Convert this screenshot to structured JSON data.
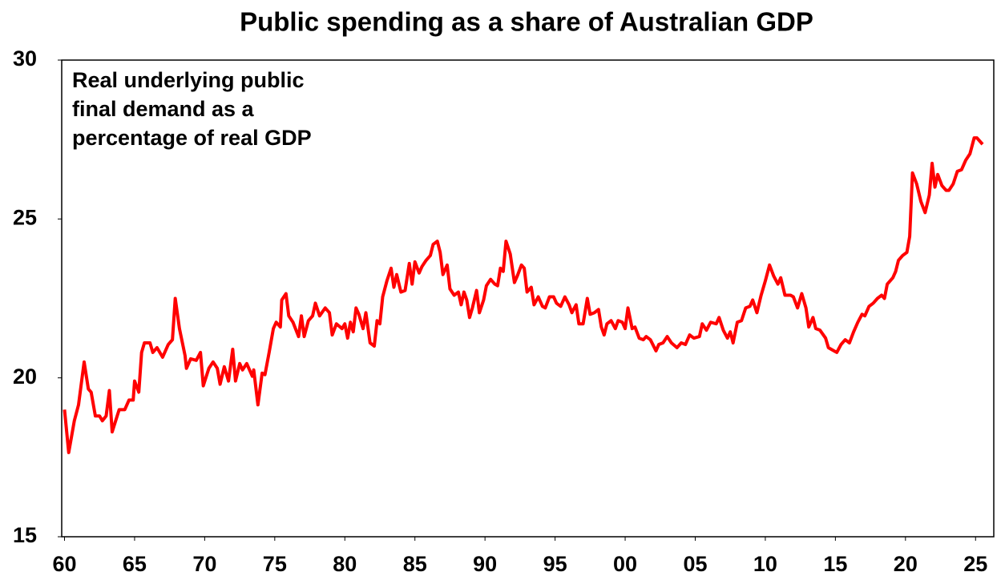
{
  "chart_data": {
    "type": "line",
    "title": "Public spending as a share of Australian GDP",
    "annotation": [
      "Real underlying public",
      "final demand as a",
      "percentage of real GDP"
    ],
    "color": "#ff0000",
    "xlim": [
      1959.8,
      2026.3
    ],
    "xticks": [
      {
        "value": 1960,
        "label": "60"
      },
      {
        "value": 1965,
        "label": "65"
      },
      {
        "value": 1970,
        "label": "70"
      },
      {
        "value": 1975,
        "label": "75"
      },
      {
        "value": 1980,
        "label": "80"
      },
      {
        "value": 1985,
        "label": "85"
      },
      {
        "value": 1990,
        "label": "90"
      },
      {
        "value": 1995,
        "label": "95"
      },
      {
        "value": 2000,
        "label": "00"
      },
      {
        "value": 2005,
        "label": "05"
      },
      {
        "value": 2010,
        "label": "10"
      },
      {
        "value": 2015,
        "label": "15"
      },
      {
        "value": 2020,
        "label": "20"
      },
      {
        "value": 2025,
        "label": "25"
      }
    ],
    "ylim": [
      15,
      30
    ],
    "yticks": [
      15,
      20,
      25,
      30
    ],
    "grid": false,
    "x": [
      1960.0,
      1960.3,
      1960.7,
      1961.0,
      1961.4,
      1961.7,
      1961.9,
      1962.2,
      1962.5,
      1962.7,
      1962.97,
      1963.2,
      1963.4,
      1963.9,
      1964.3,
      1964.6,
      1964.9,
      1965.0,
      1965.3,
      1965.5,
      1965.7,
      1966.1,
      1966.3,
      1966.6,
      1967.0,
      1967.4,
      1967.7,
      1967.9,
      1968.2,
      1968.6,
      1968.7,
      1969.0,
      1969.4,
      1969.7,
      1969.9,
      1970.3,
      1970.6,
      1970.9,
      1971.1,
      1971.4,
      1971.7,
      1972.0,
      1972.2,
      1972.5,
      1972.7,
      1973.0,
      1973.4,
      1973.5,
      1973.8,
      1974.1,
      1974.3,
      1974.6,
      1974.9,
      1975.1,
      1975.4,
      1975.5,
      1975.8,
      1976.0,
      1976.3,
      1976.7,
      1976.9,
      1977.1,
      1977.4,
      1977.7,
      1977.9,
      1978.2,
      1978.6,
      1978.9,
      1979.1,
      1979.4,
      1979.8,
      1980.0,
      1980.2,
      1980.4,
      1980.6,
      1980.8,
      1981.0,
      1981.3,
      1981.5,
      1981.8,
      1982.1,
      1982.3,
      1982.5,
      1982.7,
      1983.0,
      1983.3,
      1983.5,
      1983.7,
      1984.0,
      1984.3,
      1984.6,
      1984.8,
      1985.0,
      1985.3,
      1985.5,
      1985.8,
      1986.1,
      1986.3,
      1986.6,
      1986.8,
      1987.0,
      1987.3,
      1987.5,
      1987.8,
      1988.1,
      1988.3,
      1988.5,
      1988.7,
      1988.9,
      1989.1,
      1989.4,
      1989.6,
      1989.9,
      1990.1,
      1990.4,
      1990.7,
      1990.9,
      1991.1,
      1991.3,
      1991.5,
      1991.8,
      1992.1,
      1992.3,
      1992.6,
      1992.8,
      1993.0,
      1993.3,
      1993.5,
      1993.8,
      1994.1,
      1994.3,
      1994.6,
      1994.9,
      1995.1,
      1995.4,
      1995.7,
      1996.0,
      1996.2,
      1996.5,
      1996.7,
      1997.0,
      1997.3,
      1997.5,
      1997.8,
      1998.1,
      1998.3,
      1998.5,
      1998.7,
      1999.0,
      1999.3,
      1999.5,
      1999.8,
      2000.0,
      2000.2,
      2000.5,
      2000.7,
      2001.0,
      2001.3,
      2001.5,
      2001.8,
      2002.2,
      2002.4,
      2002.7,
      2003.0,
      2003.3,
      2003.7,
      2004.0,
      2004.3,
      2004.6,
      2004.9,
      2005.3,
      2005.5,
      2005.8,
      2006.1,
      2006.5,
      2006.7,
      2007.0,
      2007.3,
      2007.5,
      2007.7,
      2008.0,
      2008.3,
      2008.6,
      2008.9,
      2009.1,
      2009.4,
      2009.7,
      2010.0,
      2010.3,
      2010.6,
      2010.9,
      2011.1,
      2011.4,
      2011.8,
      2012.0,
      2012.3,
      2012.6,
      2012.9,
      2013.1,
      2013.4,
      2013.6,
      2013.9,
      2014.3,
      2014.5,
      2014.9,
      2015.1,
      2015.4,
      2015.7,
      2016.0,
      2016.3,
      2016.6,
      2016.9,
      2017.1,
      2017.4,
      2017.7,
      2018.0,
      2018.3,
      2018.5,
      2018.7,
      2019.1,
      2019.3,
      2019.5,
      2019.8,
      2020.1,
      2020.3,
      2020.5,
      2020.8,
      2021.1,
      2021.4,
      2021.7,
      2021.9,
      2022.1,
      2022.3,
      2022.6,
      2022.9,
      2023.1,
      2023.4,
      2023.7,
      2024.0,
      2024.3,
      2024.6,
      2024.9,
      2025.1,
      2025.5
    ],
    "values": [
      19.0,
      17.65,
      18.65,
      19.15,
      20.5,
      19.65,
      19.55,
      18.8,
      18.8,
      18.65,
      18.8,
      19.6,
      18.3,
      19.0,
      19.0,
      19.3,
      19.3,
      19.9,
      19.55,
      20.8,
      21.1,
      21.1,
      20.8,
      20.95,
      20.65,
      21.05,
      21.2,
      22.5,
      21.55,
      20.7,
      20.3,
      20.6,
      20.55,
      20.8,
      19.75,
      20.3,
      20.5,
      20.3,
      19.8,
      20.35,
      19.9,
      20.9,
      19.9,
      20.45,
      20.25,
      20.45,
      20.05,
      20.25,
      19.15,
      20.15,
      20.1,
      20.8,
      21.55,
      21.75,
      21.6,
      22.45,
      22.65,
      21.95,
      21.75,
      21.3,
      21.95,
      21.3,
      21.8,
      21.95,
      22.35,
      21.95,
      22.2,
      22.05,
      21.35,
      21.7,
      21.55,
      21.7,
      21.25,
      21.75,
      21.45,
      22.2,
      22.0,
      21.55,
      22.05,
      21.1,
      21.0,
      21.8,
      21.7,
      22.55,
      23.05,
      23.45,
      22.85,
      23.25,
      22.7,
      22.75,
      23.6,
      22.95,
      23.65,
      23.3,
      23.5,
      23.7,
      23.85,
      24.2,
      24.3,
      23.95,
      23.25,
      23.55,
      22.8,
      22.6,
      22.7,
      22.3,
      22.7,
      22.45,
      21.9,
      22.2,
      22.75,
      22.05,
      22.45,
      22.9,
      23.1,
      22.95,
      22.9,
      23.45,
      23.35,
      24.3,
      23.9,
      23.0,
      23.2,
      23.55,
      23.45,
      22.7,
      22.85,
      22.3,
      22.55,
      22.25,
      22.2,
      22.55,
      22.55,
      22.35,
      22.25,
      22.55,
      22.3,
      22.05,
      22.3,
      21.7,
      21.7,
      22.5,
      22.0,
      22.05,
      22.15,
      21.6,
      21.35,
      21.7,
      21.8,
      21.55,
      21.8,
      21.75,
      21.55,
      22.2,
      21.55,
      21.6,
      21.25,
      21.2,
      21.3,
      21.2,
      20.85,
      21.05,
      21.1,
      21.3,
      21.1,
      20.95,
      21.1,
      21.05,
      21.35,
      21.25,
      21.3,
      21.7,
      21.5,
      21.75,
      21.7,
      21.9,
      21.5,
      21.25,
      21.45,
      21.1,
      21.75,
      21.8,
      22.2,
      22.25,
      22.45,
      22.05,
      22.6,
      23.05,
      23.55,
      23.2,
      22.95,
      23.15,
      22.6,
      22.6,
      22.55,
      22.2,
      22.65,
      22.2,
      21.6,
      21.9,
      21.55,
      21.5,
      21.25,
      20.95,
      20.85,
      20.8,
      21.05,
      21.2,
      21.1,
      21.45,
      21.75,
      22.0,
      21.95,
      22.25,
      22.35,
      22.5,
      22.6,
      22.5,
      22.95,
      23.15,
      23.35,
      23.7,
      23.85,
      23.95,
      24.45,
      26.45,
      26.1,
      25.55,
      25.2,
      25.75,
      26.75,
      26.0,
      26.4,
      26.05,
      25.9,
      25.9,
      26.1,
      26.5,
      26.55,
      26.85,
      27.05,
      27.55,
      27.55,
      27.35
    ]
  }
}
